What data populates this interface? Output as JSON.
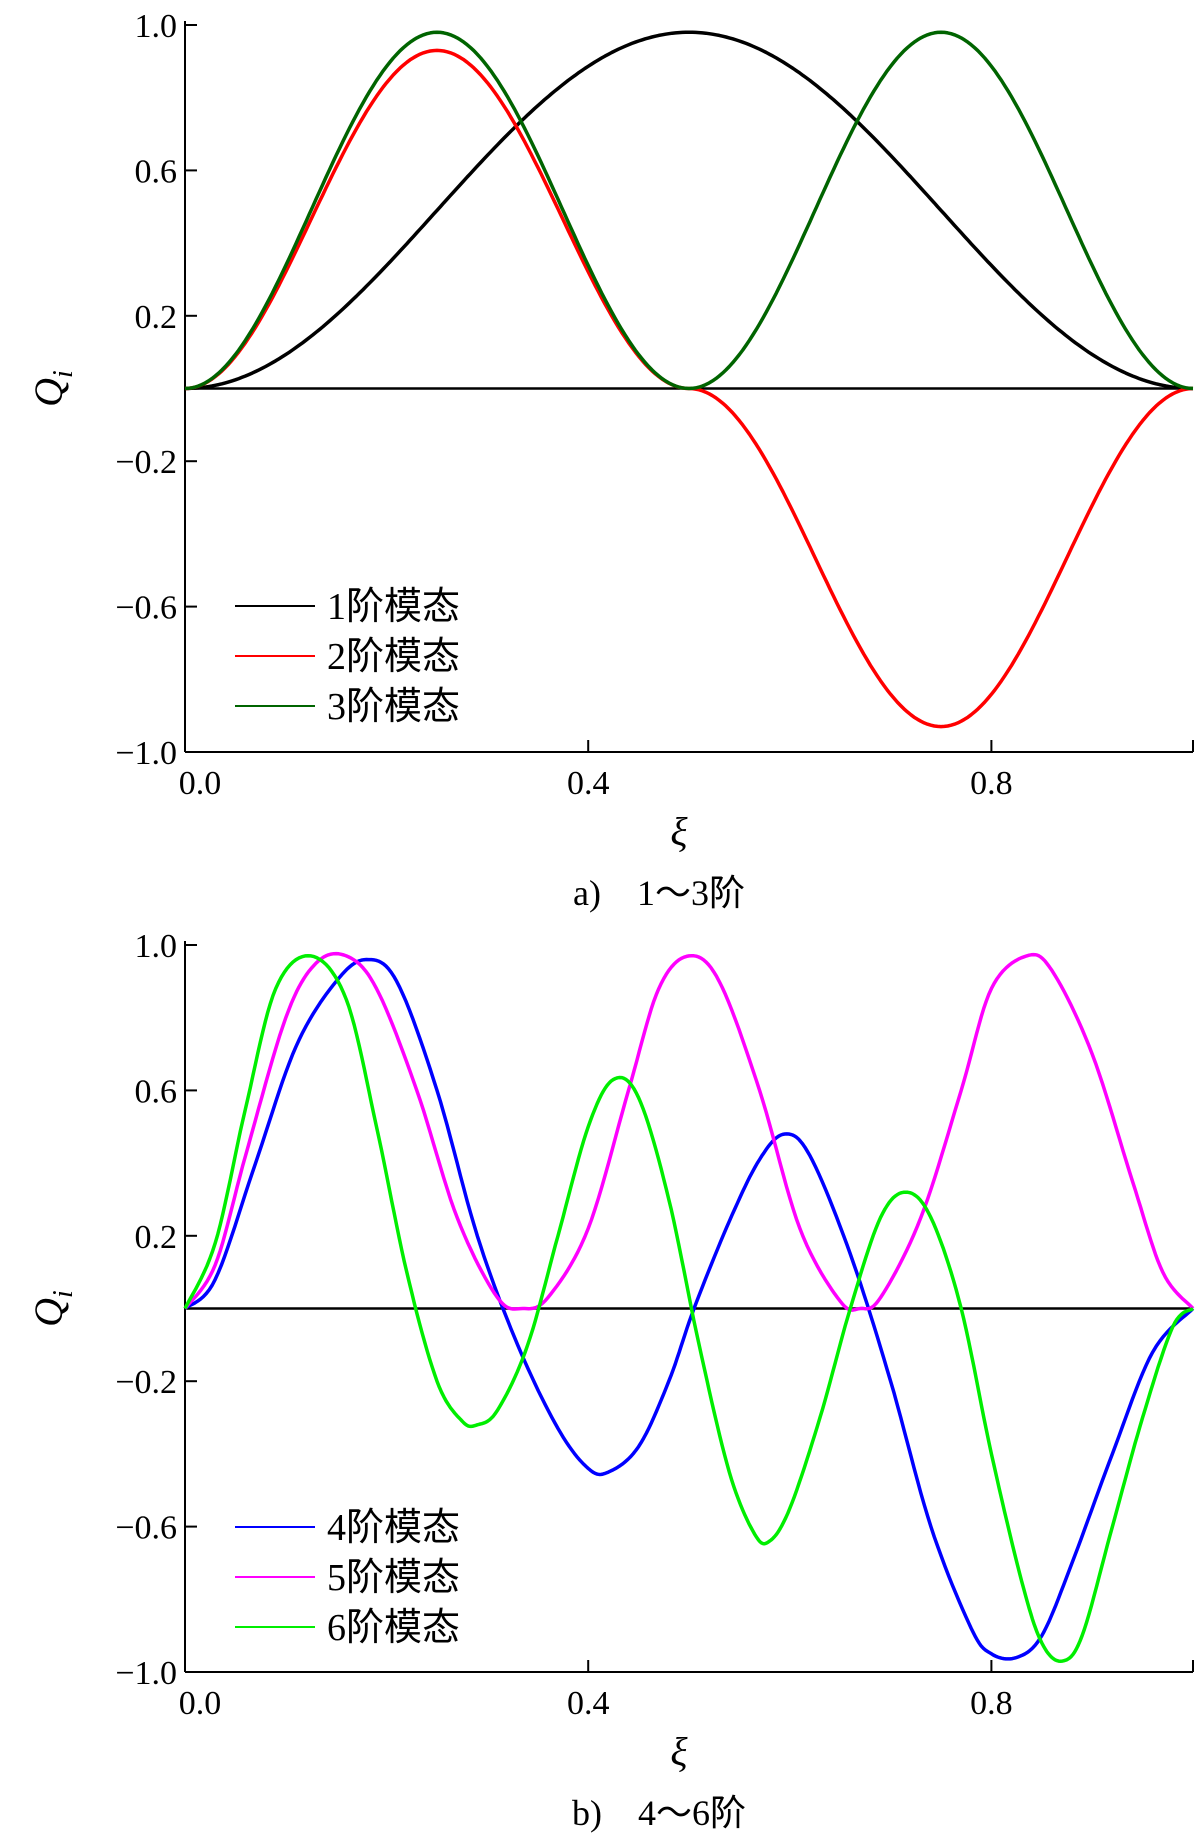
{
  "chart_data": [
    {
      "type": "line",
      "caption": "a)　1～3阶",
      "xlabel": "ξ",
      "ylabel": "Q",
      "ylabel_sub": "i",
      "xlim": [
        0,
        1
      ],
      "ylim": [
        -1,
        1
      ],
      "xticks": [
        0.0,
        0.4,
        0.8
      ],
      "xtick_labels": [
        "0.0",
        "0.4",
        "0.8"
      ],
      "yticks": [
        1.0,
        0.6,
        0.2,
        -0.2,
        -0.6,
        -1.0
      ],
      "ytick_labels": [
        "1.0",
        "0.6",
        "0.2",
        "−0.2",
        "−0.6",
        "−1.0"
      ],
      "zero_line": true,
      "legend_position": "bottom-left",
      "series": [
        {
          "name": "1阶模态",
          "color": "#000000",
          "mode": 1,
          "amplitude": 0.98,
          "shape": "sin_squared"
        },
        {
          "name": "2阶模态",
          "color": "#ff0000",
          "mode": 2,
          "amplitude": 0.93,
          "shape": "sin_abs_sin"
        },
        {
          "name": "3阶模态",
          "color": "#006400",
          "mode": 3,
          "amplitude": 0.98,
          "shape": "sin_squared_half"
        }
      ]
    },
    {
      "type": "line",
      "caption": "b)　4～6阶",
      "xlabel": "ξ",
      "ylabel": "Q",
      "ylabel_sub": "i",
      "xlim": [
        0,
        1
      ],
      "ylim": [
        -1,
        1
      ],
      "xticks": [
        0.0,
        0.4,
        0.8
      ],
      "xtick_labels": [
        "0.0",
        "0.4",
        "0.8"
      ],
      "yticks": [
        1.0,
        0.6,
        0.2,
        -0.2,
        -0.6,
        -1.0
      ],
      "ytick_labels": [
        "1.0",
        "0.6",
        "0.2",
        "−0.2",
        "−0.6",
        "−1.0"
      ],
      "zero_line": true,
      "legend_position": "bottom-left",
      "series": [
        {
          "name": "4阶模态",
          "color": "#0000ff",
          "points": [
            [
              0,
              0
            ],
            [
              0.03,
              0.08
            ],
            [
              0.07,
              0.4
            ],
            [
              0.11,
              0.72
            ],
            [
              0.15,
              0.9
            ],
            [
              0.18,
              0.96
            ],
            [
              0.21,
              0.9
            ],
            [
              0.25,
              0.6
            ],
            [
              0.29,
              0.2
            ],
            [
              0.33,
              -0.1
            ],
            [
              0.37,
              -0.33
            ],
            [
              0.4,
              -0.44
            ],
            [
              0.42,
              -0.45
            ],
            [
              0.45,
              -0.38
            ],
            [
              0.48,
              -0.2
            ],
            [
              0.505,
              0.0
            ],
            [
              0.54,
              0.24
            ],
            [
              0.57,
              0.41
            ],
            [
              0.595,
              0.48
            ],
            [
              0.62,
              0.42
            ],
            [
              0.66,
              0.15
            ],
            [
              0.7,
              -0.2
            ],
            [
              0.74,
              -0.6
            ],
            [
              0.78,
              -0.88
            ],
            [
              0.8,
              -0.95
            ],
            [
              0.825,
              -0.96
            ],
            [
              0.85,
              -0.9
            ],
            [
              0.88,
              -0.7
            ],
            [
              0.92,
              -0.4
            ],
            [
              0.96,
              -0.12
            ],
            [
              1.0,
              0
            ]
          ]
        },
        {
          "name": "5阶模态",
          "color": "#ff00ff",
          "points": [
            [
              0,
              0
            ],
            [
              0.03,
              0.12
            ],
            [
              0.06,
              0.42
            ],
            [
              0.1,
              0.8
            ],
            [
              0.13,
              0.95
            ],
            [
              0.16,
              0.97
            ],
            [
              0.19,
              0.88
            ],
            [
              0.23,
              0.6
            ],
            [
              0.27,
              0.25
            ],
            [
              0.31,
              0.03
            ],
            [
              0.335,
              0.0
            ],
            [
              0.36,
              0.03
            ],
            [
              0.4,
              0.22
            ],
            [
              0.44,
              0.6
            ],
            [
              0.47,
              0.88
            ],
            [
              0.5,
              0.97
            ],
            [
              0.53,
              0.9
            ],
            [
              0.57,
              0.6
            ],
            [
              0.61,
              0.22
            ],
            [
              0.65,
              0.02
            ],
            [
              0.67,
              0.0
            ],
            [
              0.69,
              0.03
            ],
            [
              0.73,
              0.25
            ],
            [
              0.77,
              0.6
            ],
            [
              0.8,
              0.88
            ],
            [
              0.835,
              0.97
            ],
            [
              0.86,
              0.93
            ],
            [
              0.9,
              0.7
            ],
            [
              0.94,
              0.35
            ],
            [
              0.97,
              0.1
            ],
            [
              1.0,
              0
            ]
          ]
        },
        {
          "name": "6阶模态",
          "color": "#00ee00",
          "points": [
            [
              0,
              0
            ],
            [
              0.03,
              0.18
            ],
            [
              0.06,
              0.55
            ],
            [
              0.09,
              0.88
            ],
            [
              0.125,
              0.97
            ],
            [
              0.16,
              0.85
            ],
            [
              0.19,
              0.5
            ],
            [
              0.22,
              0.1
            ],
            [
              0.25,
              -0.2
            ],
            [
              0.275,
              -0.31
            ],
            [
              0.29,
              -0.32
            ],
            [
              0.31,
              -0.28
            ],
            [
              0.34,
              -0.1
            ],
            [
              0.37,
              0.2
            ],
            [
              0.4,
              0.5
            ],
            [
              0.425,
              0.63
            ],
            [
              0.45,
              0.58
            ],
            [
              0.48,
              0.3
            ],
            [
              0.51,
              -0.1
            ],
            [
              0.54,
              -0.45
            ],
            [
              0.565,
              -0.62
            ],
            [
              0.58,
              -0.64
            ],
            [
              0.6,
              -0.55
            ],
            [
              0.63,
              -0.3
            ],
            [
              0.66,
              0.0
            ],
            [
              0.69,
              0.25
            ],
            [
              0.715,
              0.32
            ],
            [
              0.74,
              0.25
            ],
            [
              0.77,
              0.0
            ],
            [
              0.8,
              -0.4
            ],
            [
              0.83,
              -0.75
            ],
            [
              0.85,
              -0.92
            ],
            [
              0.87,
              -0.97
            ],
            [
              0.89,
              -0.9
            ],
            [
              0.92,
              -0.6
            ],
            [
              0.95,
              -0.3
            ],
            [
              0.98,
              -0.05
            ],
            [
              1.0,
              0
            ]
          ]
        }
      ]
    }
  ]
}
